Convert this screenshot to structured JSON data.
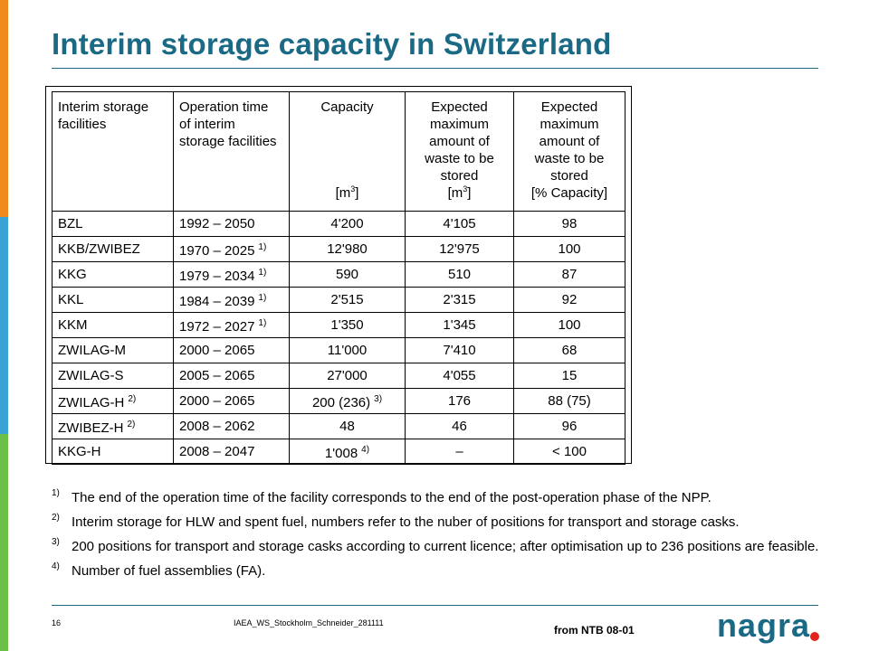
{
  "brand": {
    "orange": "#f08a1e",
    "blue": "#3aa3d6",
    "green": "#6cc04a",
    "title_color": "#1a6a86",
    "logo_dot": "#e0231b"
  },
  "title": "Interim storage capacity in Switzerland",
  "table": {
    "headers": {
      "facility": "Interim storage facilities",
      "operation": "Operation time of interim storage facilities",
      "capacity": "Capacity",
      "capacity_unit_pre": "[m",
      "capacity_unit_sup": "3",
      "capacity_unit_post": "]",
      "max_amount": "Expected maximum amount of waste to be stored",
      "max_unit_pre": "[m",
      "max_unit_sup": "3",
      "max_unit_post": "]",
      "pct_amount": "Expected maximum amount of waste to be stored",
      "pct_unit": "[% Capacity]"
    },
    "rows": [
      {
        "facility": "BZL",
        "facility_fn": "",
        "operation": "1992 – 2050",
        "operation_fn": "",
        "capacity": "4'200",
        "capacity_fn": "",
        "max": "4'105",
        "pct": "98"
      },
      {
        "facility": "KKB/ZWIBEZ",
        "facility_fn": "",
        "operation": "1970 – 2025",
        "operation_fn": "1)",
        "capacity": "12'980",
        "capacity_fn": "",
        "max": "12'975",
        "pct": "100"
      },
      {
        "facility": "KKG",
        "facility_fn": "",
        "operation": "1979 – 2034",
        "operation_fn": "1)",
        "capacity": "590",
        "capacity_fn": "",
        "max": "510",
        "pct": "87"
      },
      {
        "facility": "KKL",
        "facility_fn": "",
        "operation": "1984 – 2039",
        "operation_fn": "1)",
        "capacity": "2'515",
        "capacity_fn": "",
        "max": "2'315",
        "pct": "92"
      },
      {
        "facility": "KKM",
        "facility_fn": "",
        "operation": "1972 – 2027",
        "operation_fn": "1)",
        "capacity": "1'350",
        "capacity_fn": "",
        "max": "1'345",
        "pct": "100"
      },
      {
        "facility": "ZWILAG-M",
        "facility_fn": "",
        "operation": "2000 – 2065",
        "operation_fn": "",
        "capacity": "11'000",
        "capacity_fn": "",
        "max": "7'410",
        "pct": "68"
      },
      {
        "facility": "ZWILAG-S",
        "facility_fn": "",
        "operation": "2005 – 2065",
        "operation_fn": "",
        "capacity": "27'000",
        "capacity_fn": "",
        "max": "4'055",
        "pct": "15"
      },
      {
        "facility": "ZWILAG-H",
        "facility_fn": "2)",
        "operation": "2000 – 2065",
        "operation_fn": "",
        "capacity": "200 (236)",
        "capacity_fn": "3)",
        "max": "176",
        "pct": "88 (75)"
      },
      {
        "facility": "ZWIBEZ-H",
        "facility_fn": "2)",
        "operation": "2008 – 2062",
        "operation_fn": "",
        "capacity": "48",
        "capacity_fn": "",
        "max": "46",
        "pct": "96"
      },
      {
        "facility": "KKG-H",
        "facility_fn": "",
        "operation": "2008 – 2047",
        "operation_fn": "",
        "capacity": "1'008",
        "capacity_fn": "4)",
        "max": "–",
        "pct": "< 100"
      }
    ]
  },
  "footnotes": [
    {
      "mark": "1)",
      "text": "The end of the operation time of the facility corresponds to the end of the post-operation phase of the NPP."
    },
    {
      "mark": "2)",
      "text": "Interim storage for HLW and spent fuel, numbers refer to the nuber of positions for transport and storage casks."
    },
    {
      "mark": "3)",
      "text": "200 positions for transport and storage casks according to current licence; after optimisation up to 236 positions are feasible."
    },
    {
      "mark": "4)",
      "text": "Number of fuel assemblies (FA)."
    }
  ],
  "footer": {
    "page_number": "16",
    "doc_id": "IAEA_WS_Stockholm_Schneider_281111",
    "source": "from NTB 08-01",
    "logo_text": "nagra"
  }
}
